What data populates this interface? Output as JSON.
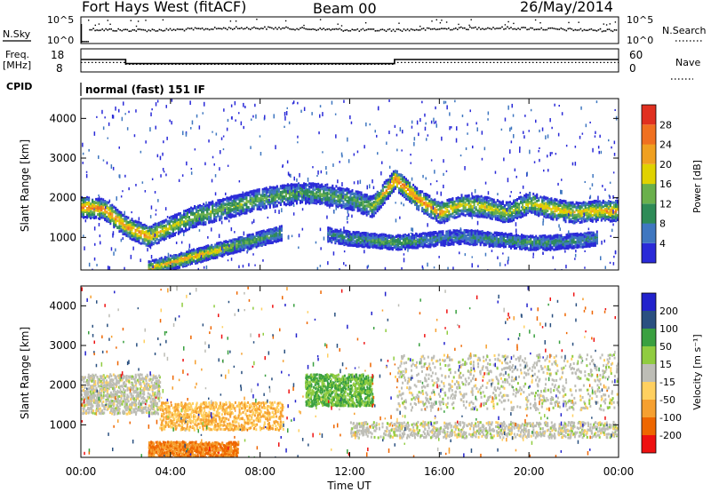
{
  "header": {
    "station": "Fort Hays West (fitACF)",
    "beam": "Beam 00",
    "date": "26/May/2014"
  },
  "labels": {
    "nsky": "N.Sky",
    "nsearch": "N.Search",
    "freq_line1": "Freq.",
    "freq_line2": "[MHz]",
    "nave": "Nave",
    "cpid": "CPID",
    "mode": "normal (fast) 151 IF",
    "slant_range": "Slant Range [km]",
    "time_axis": "Time UT",
    "power_label": "Power [dB]",
    "velocity_label": "Velocity [m s⁻¹]"
  },
  "axes": {
    "noise_left_ticks": [
      "10^5",
      "10^0"
    ],
    "noise_right_ticks": [
      "10^5",
      "10^0"
    ],
    "freq_ticks": [
      "18",
      "8"
    ],
    "nave_ticks": [
      "60",
      "0"
    ],
    "range_ticks": [
      "1000",
      "2000",
      "3000",
      "4000"
    ],
    "time_ticks": [
      "00:00",
      "04:00",
      "08:00",
      "12:00",
      "16:00",
      "20:00",
      "00:00"
    ]
  },
  "colors": {
    "power": [
      "#2a2ad8",
      "#3f77c0",
      "#2e8b57",
      "#6ab04c",
      "#e0d200",
      "#f0a020",
      "#f07020",
      "#e03020",
      "#cc0000"
    ],
    "velocity": [
      "#ee1111",
      "#ee6600",
      "#f6a030",
      "#ffd060",
      "#c0c0c0",
      "#b8b8b8",
      "#90cc40",
      "#3aa040",
      "#2a5080",
      "#2222cc"
    ],
    "frame": "#000000",
    "scatter_grey": "#bdbdb6"
  },
  "chart_data": [
    {
      "type": "line",
      "panel": "noise",
      "series": [
        {
          "name": "N.Sky",
          "style": "dots"
        },
        {
          "name": "N.Search",
          "style": "dotted"
        }
      ],
      "y_scale": "log",
      "ylim_labels": [
        "10^0",
        "10^5"
      ],
      "xlim": [
        "00:00",
        "24:00"
      ]
    },
    {
      "type": "line",
      "panel": "frequency",
      "series": [
        {
          "name": "Freq.",
          "x_hours": [
            0,
            2.0,
            2.0,
            14.0,
            14.0,
            24.0
          ],
          "values": [
            13.4,
            13.4,
            11.5,
            11.5,
            13.4,
            13.4
          ],
          "unit": "MHz"
        },
        {
          "name": "Nave",
          "x_hours": [
            0,
            2.0,
            2.0,
            14.0,
            14.0,
            24.0
          ],
          "values": [
            24,
            24,
            19,
            19,
            24,
            24
          ]
        }
      ],
      "ylim_left": [
        8,
        18
      ],
      "ylim_right": [
        0,
        60
      ]
    },
    {
      "type": "heatmap",
      "panel": "power",
      "xlabel": "Time UT",
      "ylabel": "Slant Range [km]",
      "xlim_hours": [
        0,
        24
      ],
      "ylim_km": [
        180,
        4500
      ],
      "colorbar": {
        "label": "Power [dB]",
        "ticks": [
          4,
          8,
          12,
          16,
          20,
          24,
          28
        ],
        "range": [
          0,
          32
        ]
      },
      "echo_bands": [
        {
          "t": [
            0,
            1,
            2,
            3,
            4,
            5,
            6,
            7,
            8,
            9,
            10,
            11,
            12,
            13,
            14,
            15,
            16,
            17,
            18,
            19,
            20,
            21,
            22,
            23,
            24
          ],
          "range_km": [
            1800,
            1750,
            1300,
            1050,
            1300,
            1550,
            1700,
            1850,
            2000,
            2100,
            2150,
            2100,
            2000,
            1800,
            2500,
            2000,
            1650,
            1850,
            1800,
            1650,
            1900,
            1750,
            1650,
            1700,
            1700
          ],
          "peak_db": [
            26,
            26,
            24,
            24,
            18,
            16,
            14,
            16,
            14,
            14,
            12,
            14,
            12,
            16,
            28,
            26,
            24,
            18,
            20,
            16,
            18,
            22,
            20,
            22,
            24
          ]
        },
        {
          "t": [
            3,
            4,
            5,
            6,
            7,
            8,
            9
          ],
          "range_km": [
            250,
            400,
            550,
            700,
            850,
            1000,
            1150
          ],
          "peak_db": [
            20,
            22,
            24,
            20,
            16,
            12,
            10
          ]
        },
        {
          "t": [
            11,
            12,
            13,
            14,
            15,
            16,
            17,
            18,
            19,
            20,
            21,
            22,
            23
          ],
          "range_km": [
            1100,
            1000,
            950,
            900,
            950,
            1000,
            1050,
            1000,
            950,
            900,
            900,
            950,
            1000
          ],
          "peak_db": [
            8,
            10,
            12,
            14,
            10,
            8,
            8,
            10,
            10,
            12,
            10,
            10,
            8
          ]
        }
      ]
    },
    {
      "type": "heatmap",
      "panel": "velocity",
      "xlabel": "Time UT",
      "ylabel": "Slant Range [km]",
      "xlim_hours": [
        0,
        24
      ],
      "ylim_km": [
        180,
        4500
      ],
      "colorbar": {
        "label": "Velocity [m s⁻¹]",
        "ticks": [
          -200,
          -100,
          -50,
          -15,
          15,
          50,
          100,
          200
        ]
      },
      "regions": [
        {
          "t_hours": [
            0,
            3.5
          ],
          "range_km": [
            1300,
            2300
          ],
          "velocity": 0
        },
        {
          "t_hours": [
            3.5,
            9
          ],
          "range_km": [
            900,
            1600
          ],
          "velocity": -50
        },
        {
          "t_hours": [
            3,
            7
          ],
          "range_km": [
            200,
            600
          ],
          "velocity": -100
        },
        {
          "t_hours": [
            10,
            13
          ],
          "range_km": [
            1500,
            2300
          ],
          "velocity": 50
        },
        {
          "t_hours": [
            14,
            24
          ],
          "range_km": [
            1400,
            2800
          ],
          "velocity": 0
        },
        {
          "t_hours": [
            12,
            24
          ],
          "range_km": [
            700,
            1100
          ],
          "velocity": 0
        }
      ]
    }
  ]
}
